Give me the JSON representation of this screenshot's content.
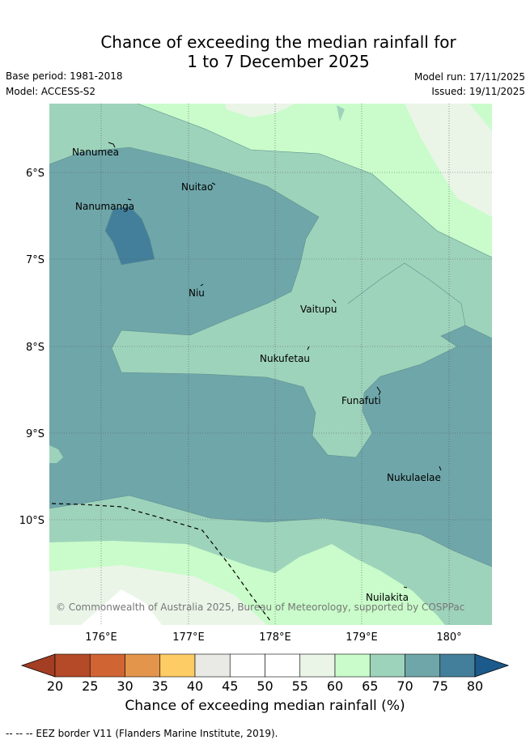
{
  "title_line1": "Chance of exceeding the median rainfall for",
  "title_line2": "1 to 7 December 2025",
  "meta": {
    "base_period": "Base period: 1981-2018",
    "model": "Model: ACCESS-S2",
    "model_run": "Model run: 17/11/2025",
    "issued": "Issued: 19/11/2025"
  },
  "map": {
    "lon_ticks": [
      "176°E",
      "177°E",
      "178°E",
      "179°E",
      "180°"
    ],
    "lat_ticks": [
      "6°S",
      "7°S",
      "8°S",
      "9°S",
      "10°S"
    ],
    "lon_range": [
      175.5,
      180.5
    ],
    "lat_range": [
      -5.2,
      -11.2
    ],
    "places": [
      {
        "name": "Nanumea",
        "lon": 176.1,
        "lat": -5.67
      },
      {
        "name": "Nuitao",
        "lon": 177.3,
        "lat": -6.1
      },
      {
        "name": "Nanumanga",
        "lon": 176.32,
        "lat": -6.3
      },
      {
        "name": "Niu",
        "lon": 177.16,
        "lat": -7.3
      },
      {
        "name": "Vaitupu",
        "lon": 178.67,
        "lat": -7.47
      },
      {
        "name": "Nukufetau",
        "lon": 178.38,
        "lat": -8.03
      },
      {
        "name": "Funafuti",
        "lon": 179.2,
        "lat": -8.52
      },
      {
        "name": "Nukulaelae",
        "lon": 179.83,
        "lat": -9.38
      },
      {
        "name": "Nuilakita",
        "lon": 179.52,
        "lat": -10.73
      }
    ],
    "copyright": "© Commonwealth of Australia 2025, Bureau of Meteorology, supported by COSPPac"
  },
  "legend": {
    "ticks": [
      "20",
      "25",
      "30",
      "35",
      "40",
      "45",
      "50",
      "55",
      "60",
      "65",
      "70",
      "75",
      "80"
    ],
    "colors": [
      "#b44a28",
      "#d06533",
      "#e3964b",
      "#fdcc65",
      "#e9e9e5",
      "#ffffff",
      "#ffffff",
      "#eaf5e8",
      "#c9fcca",
      "#9ed3bb",
      "#6fa6a9",
      "#437f9a"
    ],
    "under_color": "#a33d24",
    "over_color": "#1c5a8b",
    "title": "Chance of exceeding median rainfall (%)"
  },
  "eez_note": "--  --  -- EEZ border V11 (Flanders Marine Institute, 2019)."
}
